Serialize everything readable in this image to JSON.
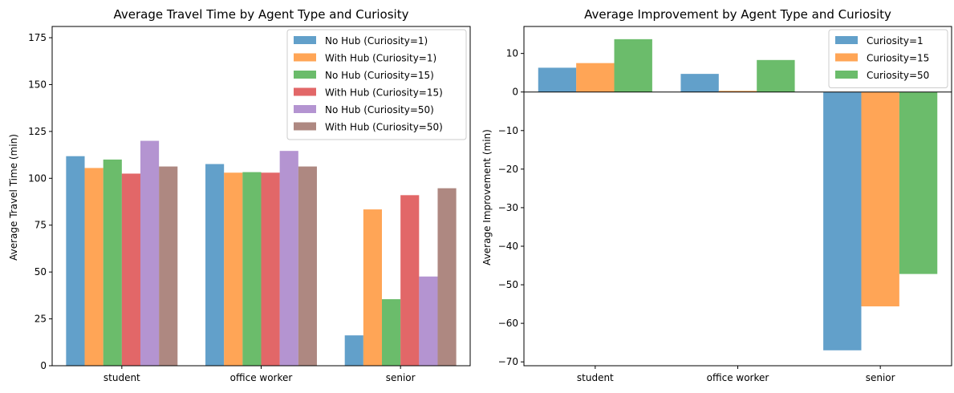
{
  "chart_data": [
    {
      "type": "bar",
      "title": "Average Travel Time by Agent Type and Curiosity",
      "xlabel": "",
      "ylabel": "Average Travel Time (min)",
      "categories": [
        "student",
        "office worker",
        "senior"
      ],
      "ylim": [
        0,
        181
      ],
      "yticks": [
        0,
        25,
        50,
        75,
        100,
        125,
        150,
        175
      ],
      "grid": false,
      "legend_position": "top-right",
      "series": [
        {
          "name": "No Hub (Curiosity=1)",
          "color": "#1f77b4",
          "values": [
            111.8,
            107.6,
            16.2
          ]
        },
        {
          "name": "With Hub (Curiosity=1)",
          "color": "#ff7f0e",
          "values": [
            105.5,
            103.0,
            83.4
          ]
        },
        {
          "name": "No Hub (Curiosity=15)",
          "color": "#2ca02c",
          "values": [
            110.0,
            103.3,
            35.5
          ]
        },
        {
          "name": "With Hub (Curiosity=15)",
          "color": "#d62728",
          "values": [
            102.5,
            103.0,
            91.0
          ]
        },
        {
          "name": "No Hub (Curiosity=50)",
          "color": "#9467bd",
          "values": [
            120.0,
            114.6,
            47.6
          ]
        },
        {
          "name": "With Hub (Curiosity=50)",
          "color": "#8c564b",
          "values": [
            106.3,
            106.3,
            94.7
          ]
        }
      ]
    },
    {
      "type": "bar",
      "title": "Average Improvement by Agent Type and Curiosity",
      "xlabel": "",
      "ylabel": "Average Improvement (min)",
      "categories": [
        "student",
        "office worker",
        "senior"
      ],
      "ylim": [
        -71,
        17
      ],
      "yticks": [
        -70,
        -60,
        -50,
        -40,
        -30,
        -20,
        -10,
        0,
        10
      ],
      "grid": false,
      "legend_position": "top-right",
      "series": [
        {
          "name": "Curiosity=1",
          "color": "#1f77b4",
          "values": [
            6.3,
            4.7,
            -67.0
          ]
        },
        {
          "name": "Curiosity=15",
          "color": "#ff7f0e",
          "values": [
            7.5,
            0.3,
            -55.6
          ]
        },
        {
          "name": "Curiosity=50",
          "color": "#2ca02c",
          "values": [
            13.7,
            8.3,
            -47.2
          ]
        }
      ]
    }
  ]
}
